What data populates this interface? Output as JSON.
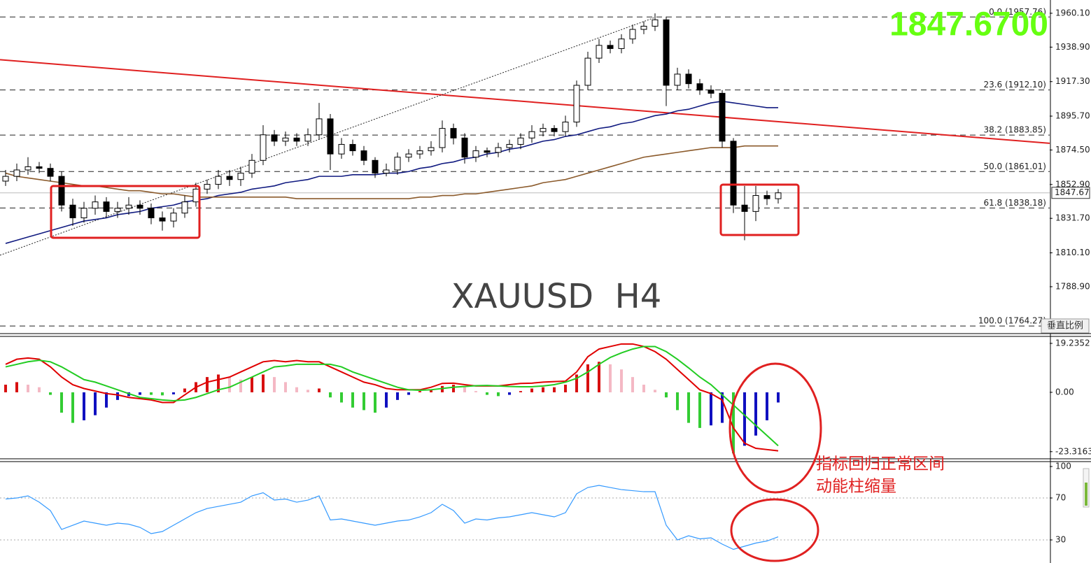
{
  "chart_data": {
    "type": "candlestick",
    "symbol_label": "XAUUSD  H4",
    "current_price_label": "1847.6700",
    "current_price": 1847.67,
    "vertical_scale_button": "垂直比例",
    "annotations": [
      "指标回归正常区间",
      "动能柱缩量"
    ],
    "price": {
      "ylim": [
        1762.6,
        1968.4
      ],
      "yticks": [
        {
          "value": 1960.1,
          "label": "1960.10"
        },
        {
          "value": 1938.9,
          "label": "1938.90"
        },
        {
          "value": 1917.3,
          "label": "1917.30"
        },
        {
          "value": 1895.7,
          "label": "1895.70"
        },
        {
          "value": 1874.5,
          "label": "1874.50"
        },
        {
          "value": 1852.9,
          "label": "1852.90"
        },
        {
          "value": 1831.7,
          "label": "1831.70"
        },
        {
          "value": 1810.1,
          "label": "1810.10"
        },
        {
          "value": 1788.9,
          "label": "1788.90"
        }
      ],
      "fib_levels": [
        {
          "value": 1957.76,
          "label": "0.0 (1957.76)"
        },
        {
          "value": 1912.1,
          "label": "23.6 (1912.10)"
        },
        {
          "value": 1883.85,
          "label": "38.2 (1883.85)"
        },
        {
          "value": 1861.01,
          "label": "50.0 (1861.01)"
        },
        {
          "value": 1838.18,
          "label": "61.8 (1838.18)"
        },
        {
          "value": 1764.27,
          "label": "100.0 (1764.27)"
        }
      ],
      "candles": {
        "open": [
          1855,
          1858,
          1862,
          1864,
          1863,
          1858,
          1840,
          1832,
          1838,
          1842,
          1836,
          1838,
          1840,
          1838,
          1832,
          1830,
          1835,
          1842,
          1850,
          1853,
          1858,
          1856,
          1860,
          1868,
          1884,
          1880,
          1882,
          1880,
          1884,
          1894,
          1872,
          1878,
          1874,
          1868,
          1860,
          1862,
          1870,
          1872,
          1874,
          1876,
          1888,
          1882,
          1870,
          1874,
          1873,
          1876,
          1878,
          1882,
          1886,
          1888,
          1886,
          1892,
          1915,
          1932,
          1940,
          1938,
          1944,
          1950,
          1952,
          1956,
          1915,
          1922,
          1916,
          1912,
          1910,
          1880,
          1840,
          1836,
          1846,
          1844
        ],
        "high": [
          1862,
          1866,
          1870,
          1867,
          1866,
          1861,
          1844,
          1842,
          1846,
          1845,
          1842,
          1845,
          1843,
          1841,
          1836,
          1838,
          1846,
          1854,
          1856,
          1862,
          1862,
          1864,
          1872,
          1890,
          1887,
          1886,
          1885,
          1888,
          1904,
          1897,
          1882,
          1881,
          1877,
          1870,
          1866,
          1873,
          1875,
          1877,
          1880,
          1893,
          1891,
          1885,
          1877,
          1876,
          1879,
          1881,
          1885,
          1890,
          1891,
          1890,
          1896,
          1918,
          1936,
          1944,
          1943,
          1947,
          1953,
          1955,
          1960,
          1958,
          1926,
          1925,
          1919,
          1915,
          1912,
          1882,
          1852,
          1852,
          1849,
          1850
        ],
        "low": [
          1852,
          1855,
          1859,
          1860,
          1855,
          1836,
          1827,
          1829,
          1834,
          1832,
          1832,
          1834,
          1834,
          1828,
          1824,
          1826,
          1832,
          1839,
          1847,
          1850,
          1852,
          1852,
          1857,
          1865,
          1877,
          1877,
          1877,
          1877,
          1881,
          1862,
          1869,
          1871,
          1865,
          1857,
          1858,
          1859,
          1867,
          1869,
          1871,
          1873,
          1878,
          1866,
          1867,
          1870,
          1870,
          1873,
          1875,
          1879,
          1883,
          1883,
          1883,
          1889,
          1912,
          1929,
          1935,
          1935,
          1941,
          1947,
          1949,
          1902,
          1912,
          1913,
          1909,
          1907,
          1876,
          1835,
          1818,
          1830,
          1840,
          1841
        ],
        "close": [
          1858,
          1862,
          1864,
          1863,
          1858,
          1840,
          1832,
          1838,
          1842,
          1836,
          1838,
          1840,
          1838,
          1832,
          1830,
          1835,
          1842,
          1850,
          1853,
          1858,
          1856,
          1860,
          1868,
          1884,
          1880,
          1882,
          1880,
          1884,
          1894,
          1872,
          1878,
          1874,
          1868,
          1860,
          1862,
          1870,
          1872,
          1874,
          1876,
          1888,
          1882,
          1870,
          1874,
          1873,
          1876,
          1878,
          1882,
          1886,
          1888,
          1886,
          1892,
          1915,
          1932,
          1940,
          1938,
          1944,
          1950,
          1952,
          1956,
          1915,
          1922,
          1916,
          1912,
          1910,
          1880,
          1840,
          1836,
          1846,
          1844,
          1847.67
        ]
      },
      "moving_averages": [
        {
          "color": "#101a80",
          "values": [
            1816,
            1818,
            1820,
            1822,
            1824,
            1826,
            1828,
            1830,
            1831,
            1832,
            1834,
            1835,
            1836,
            1838,
            1839,
            1840,
            1842,
            1843,
            1844,
            1846,
            1847,
            1848,
            1850,
            1851,
            1852,
            1854,
            1855,
            1856,
            1858,
            1858,
            1858,
            1859,
            1859,
            1859,
            1860,
            1860,
            1861,
            1863,
            1864,
            1866,
            1867,
            1869,
            1870,
            1872,
            1873,
            1875,
            1876,
            1878,
            1880,
            1881,
            1883,
            1884,
            1886,
            1888,
            1889,
            1891,
            1892,
            1894,
            1896,
            1897,
            1899,
            1900,
            1902,
            1904,
            1905,
            1904,
            1903,
            1902,
            1901,
            1901
          ]
        },
        {
          "color": "#8b5a2b",
          "values": [
            1860,
            1858,
            1857,
            1856,
            1855,
            1854,
            1853,
            1852,
            1852,
            1851,
            1850,
            1849,
            1849,
            1848,
            1847,
            1847,
            1846,
            1845,
            1845,
            1845,
            1845,
            1845,
            1845,
            1845,
            1845,
            1845,
            1844,
            1844,
            1844,
            1844,
            1844,
            1844,
            1844,
            1844,
            1844,
            1844,
            1844,
            1845,
            1845,
            1846,
            1846,
            1847,
            1847,
            1848,
            1849,
            1850,
            1851,
            1852,
            1854,
            1855,
            1856,
            1858,
            1860,
            1862,
            1864,
            1866,
            1868,
            1870,
            1871,
            1872,
            1873,
            1874,
            1875,
            1876,
            1876,
            1876,
            1877,
            1877,
            1877,
            1877
          ]
        }
      ],
      "trendline": {
        "color": "#e02020",
        "values": [
          1931,
          1878.7
        ]
      },
      "channel_line": {
        "color": "#222222",
        "values": [
          1808.6,
          1957.5
        ]
      }
    },
    "macd": {
      "ylim": [
        -26.4,
        21.7
      ],
      "yticks": [
        19.2352,
        {
          "value": 0,
          "label": "0.00"
        },
        -23.3163
      ],
      "histogram": [
        3,
        4,
        3,
        2,
        -1,
        -8,
        -12,
        -11,
        -9,
        -6,
        -3,
        -1.5,
        -1,
        -1,
        -1.2,
        -0.8,
        1.5,
        4,
        6,
        7,
        6,
        5,
        6,
        7,
        6,
        4,
        2,
        1,
        1.5,
        -2,
        -4,
        -6,
        -7,
        -8,
        -6,
        -3,
        -1,
        0.5,
        1,
        2.5,
        3,
        2,
        0.5,
        -1,
        -1.5,
        -1,
        0.5,
        1.5,
        2,
        2,
        3,
        7,
        11,
        12,
        11,
        9,
        6,
        3,
        1,
        -2,
        -7,
        -12,
        -14,
        -13,
        -12,
        -24,
        -21,
        -17,
        -11,
        -4
      ],
      "histogram_colors": {
        "positive_rising": "#d81010",
        "positive_falling": "#f4b8c4",
        "negative_falling": "#33cc33",
        "negative_rising": "#1010c0"
      },
      "series": [
        {
          "color": "#e00000",
          "values": [
            11,
            13,
            13.5,
            13,
            10,
            6,
            3,
            1.5,
            0.5,
            -0.5,
            -1,
            -2,
            -2.5,
            -3,
            -4,
            -4,
            -1,
            2,
            4,
            5,
            6,
            8,
            10,
            12,
            12.5,
            12,
            12.5,
            12,
            12,
            10,
            8,
            6,
            4,
            3,
            1.5,
            1,
            1,
            1,
            2,
            3.5,
            3.6,
            3,
            2.5,
            2.5,
            2.5,
            3,
            3.5,
            3.6,
            4,
            4.2,
            4.4,
            8,
            14,
            17,
            18,
            19,
            19,
            18,
            16,
            13,
            9,
            5,
            1,
            -0.5,
            -3,
            -14,
            -20,
            -22,
            -22.5,
            -23
          ]
        },
        {
          "color": "#22cc22",
          "values": [
            10,
            11,
            12,
            12.6,
            12,
            10,
            7.5,
            5,
            4,
            2.5,
            1,
            -0.5,
            -2,
            -2.5,
            -3,
            -3.3,
            -3,
            -2,
            -0.5,
            1,
            2,
            4,
            6,
            8,
            10,
            10.4,
            11,
            11,
            11,
            11,
            10,
            8,
            6.5,
            5,
            3.5,
            2,
            1,
            0.8,
            1,
            1.5,
            2,
            2.3,
            2.6,
            2.7,
            2.5,
            2.3,
            2.2,
            2.2,
            2.5,
            3,
            4,
            5.5,
            8,
            11,
            13.7,
            15.5,
            17,
            18,
            18,
            16,
            13,
            9.6,
            6,
            3,
            -1,
            -5,
            -9,
            -13,
            -17,
            -21
          ]
        }
      ]
    },
    "rsi": {
      "ylim": [
        8,
        104.7
      ],
      "yticks": [
        100,
        70,
        30
      ],
      "levels": [
        70,
        30
      ],
      "color": "#3399ff",
      "values": [
        69,
        70,
        72,
        66,
        58,
        40,
        44,
        48,
        46,
        44,
        46,
        45,
        42,
        36,
        38,
        44,
        50,
        56,
        60,
        62,
        64,
        66,
        72,
        75,
        68,
        69,
        66,
        68,
        72,
        49,
        50,
        48,
        46,
        44,
        46,
        48,
        49,
        52,
        56,
        64,
        58,
        46,
        50,
        49,
        51,
        52,
        54,
        56,
        54,
        52,
        56,
        74,
        80,
        82,
        80,
        78,
        77,
        76,
        76,
        44,
        30,
        34,
        31,
        32,
        26,
        21,
        24,
        27,
        29,
        33
      ]
    }
  }
}
